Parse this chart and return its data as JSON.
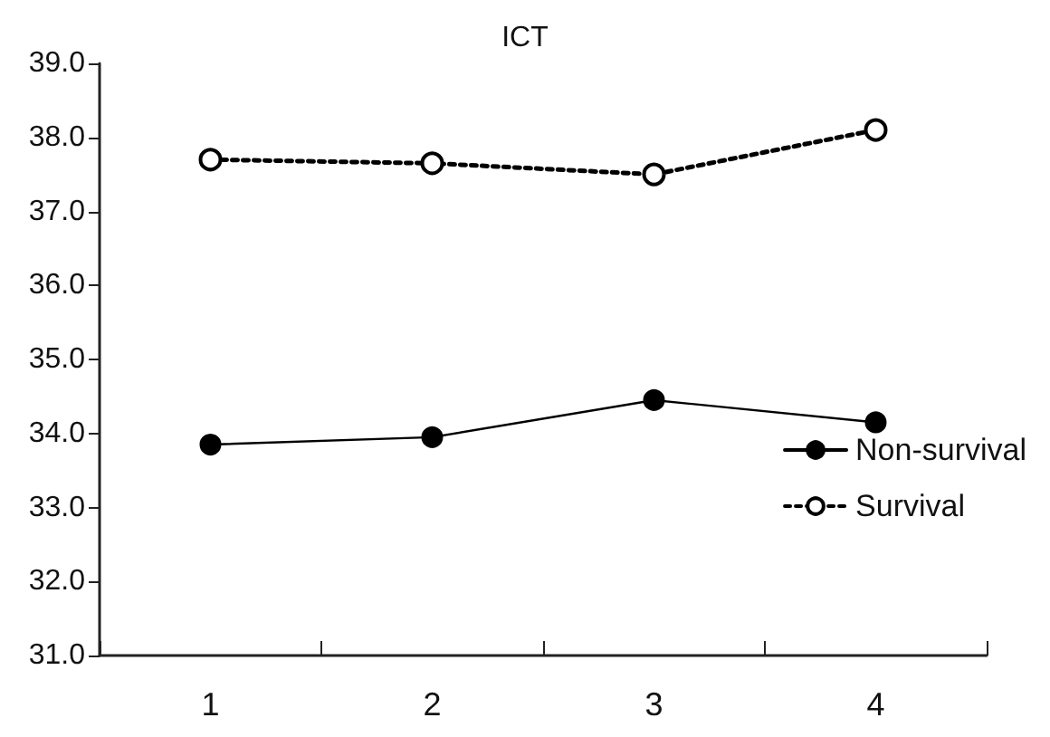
{
  "chart_data": {
    "type": "line",
    "title": "ICT",
    "categories": [
      "1",
      "2",
      "3",
      "4"
    ],
    "series": [
      {
        "name": "Non-survival",
        "color": "#000000",
        "line_style": "solid",
        "values": [
          33.85,
          33.95,
          34.45,
          34.15
        ]
      },
      {
        "name": "Survival",
        "color": "#000000",
        "line_style": "dotted",
        "values": [
          37.7,
          37.65,
          37.5,
          38.1
        ]
      }
    ],
    "ylim": [
      31,
      39
    ],
    "yticks": [
      {
        "value": 31,
        "label": "31.0"
      },
      {
        "value": 32,
        "label": "32.0"
      },
      {
        "value": 33,
        "label": "33.0"
      },
      {
        "value": 34,
        "label": "34.0"
      },
      {
        "value": 35,
        "label": "35.0"
      },
      {
        "value": 36,
        "label": "36.0"
      },
      {
        "value": 37,
        "label": "37.0"
      },
      {
        "value": 38,
        "label": "38.0"
      },
      {
        "value": 39,
        "label": "39.0"
      }
    ],
    "marker": "circle",
    "grid": false,
    "legend": "right"
  }
}
